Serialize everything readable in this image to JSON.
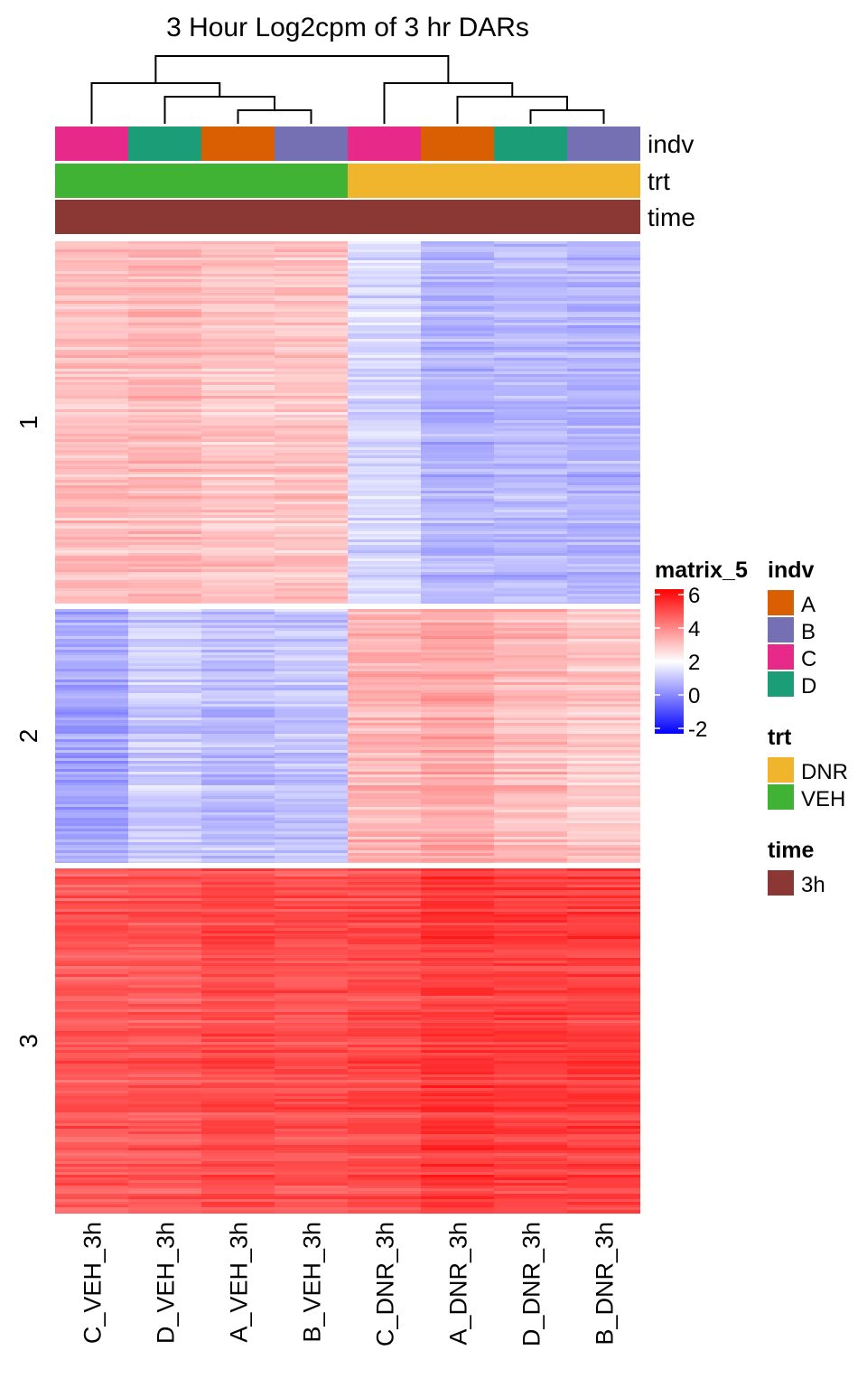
{
  "chart_data": {
    "type": "heatmap",
    "title": "3 Hour Log2cpm of 3 hr DARs",
    "columns": [
      "C_VEH_3h",
      "D_VEH_3h",
      "A_VEH_3h",
      "B_VEH_3h",
      "C_DNR_3h",
      "A_DNR_3h",
      "D_DNR_3h",
      "B_DNR_3h"
    ],
    "row_clusters": [
      {
        "label": "1",
        "mean_values": [
          3.0,
          3.1,
          2.9,
          2.9,
          1.4,
          0.8,
          0.9,
          0.8
        ]
      },
      {
        "label": "2",
        "mean_values": [
          0.6,
          1.2,
          1.0,
          1.1,
          3.2,
          3.4,
          3.1,
          2.9
        ]
      },
      {
        "label": "3",
        "mean_values": [
          4.6,
          4.6,
          4.8,
          4.7,
          4.8,
          5.1,
          5.0,
          5.0
        ]
      }
    ],
    "annotations": [
      {
        "name": "indv",
        "values": [
          "C",
          "D",
          "A",
          "B",
          "C",
          "A",
          "D",
          "B"
        ]
      },
      {
        "name": "trt",
        "values": [
          "VEH",
          "VEH",
          "VEH",
          "VEH",
          "DNR",
          "DNR",
          "DNR",
          "DNR"
        ]
      },
      {
        "name": "time",
        "values": [
          "3h",
          "3h",
          "3h",
          "3h",
          "3h",
          "3h",
          "3h",
          "3h"
        ]
      }
    ],
    "dendrogram": {
      "merges": [
        {
          "left": 2,
          "right": 3,
          "height": 1
        },
        {
          "left": 1,
          "right": "m0",
          "height": 2
        },
        {
          "left": 0,
          "right": "m1",
          "height": 3
        },
        {
          "left": 6,
          "right": 7,
          "height": 1
        },
        {
          "left": 5,
          "right": "m3",
          "height": 2
        },
        {
          "left": 4,
          "right": "m4",
          "height": 3
        },
        {
          "left": "m2",
          "right": "m5",
          "height": 5
        }
      ],
      "max_height": 5
    },
    "color_scale": {
      "name": "matrix_5",
      "stops": [
        {
          "value": -2,
          "color": "#0000ff"
        },
        {
          "value": 2,
          "color": "#ffffff"
        },
        {
          "value": 6,
          "color": "#ff0000"
        }
      ],
      "ticks": [
        "6",
        "4",
        "2",
        "0",
        "-2"
      ],
      "range": [
        -2,
        6
      ]
    },
    "legends": [
      {
        "title": "indv",
        "items": [
          {
            "label": "A",
            "color": "#d95f02"
          },
          {
            "label": "B",
            "color": "#7570b3"
          },
          {
            "label": "C",
            "color": "#e7298a"
          },
          {
            "label": "D",
            "color": "#1b9e77"
          }
        ]
      },
      {
        "title": "trt",
        "items": [
          {
            "label": "DNR",
            "color": "#f0b52c"
          },
          {
            "label": "VEH",
            "color": "#41b334"
          }
        ]
      },
      {
        "title": "time",
        "items": [
          {
            "label": "3h",
            "color": "#8b3834"
          }
        ]
      }
    ]
  }
}
